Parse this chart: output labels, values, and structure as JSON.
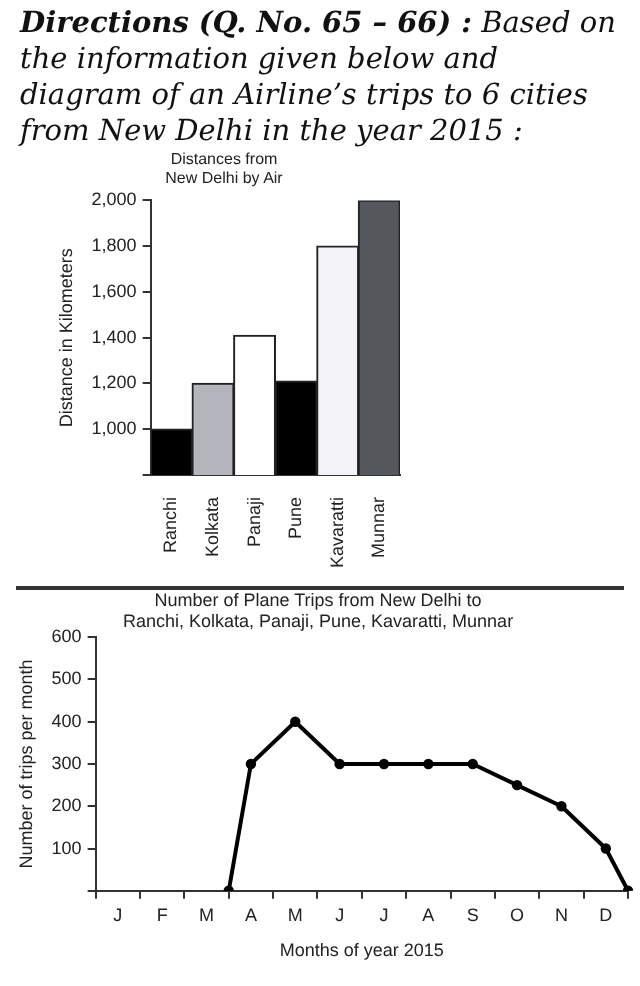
{
  "chart_data": [
    {
      "type": "bar",
      "annotations": [
        "Directions (Q. No. 65 – 66) : Based on the information given below and diagram of an Airline’s trips to 6 cities from New Delhi in the year 2015 :"
      ],
      "title": "Distances from\nNew Delhi by Air",
      "ylabel": "Distance in Kilometers",
      "categories": [
        "Ranchi",
        "Kolkata",
        "Panaji",
        "Pune",
        "Kavaratti",
        "Munnar"
      ],
      "values": [
        1000,
        1200,
        1410,
        1210,
        1800,
        2000
      ],
      "colors": [
        "#000000",
        "#b4b4bc",
        "#ffffff",
        "#000000",
        "#f2f2f8",
        "#54575c"
      ],
      "ylim": [
        800,
        2000
      ],
      "yticks": [
        {
          "value": 800,
          "label": null
        },
        {
          "value": 1000,
          "label": "1,000"
        },
        {
          "value": 1200,
          "label": "1,200"
        },
        {
          "value": 1400,
          "label": "1,400"
        },
        {
          "value": 1600,
          "label": "1,600"
        },
        {
          "value": 1800,
          "label": "1,800"
        },
        {
          "value": 2000,
          "label": "2,000"
        }
      ],
      "grid": false,
      "legend": false
    },
    {
      "type": "line",
      "title": "Number of Plane Trips from New Delhi to\nRanchi, Kolkata, Panaji, Pune, Kavaratti, Munnar",
      "xlabel": "Months of year 2015",
      "ylabel": "Number of trips per month",
      "categories": [
        null,
        "J",
        null,
        "F",
        null,
        "M",
        null,
        "A",
        null,
        "M",
        null,
        "J",
        null,
        "J",
        null,
        "A",
        null,
        "S",
        null,
        "O",
        null,
        "N",
        null,
        "D",
        null
      ],
      "values": [
        null,
        null,
        null,
        null,
        null,
        null,
        0,
        300,
        null,
        400,
        null,
        300,
        null,
        300,
        null,
        300,
        null,
        300,
        null,
        250,
        null,
        200,
        null,
        100,
        0
      ],
      "color": "#000000",
      "marker": "circle",
      "line_style": "solid",
      "ylim": [
        0,
        600
      ],
      "yticks": [
        {
          "value": 0,
          "label": null
        },
        100,
        200,
        300,
        400,
        500,
        600
      ],
      "grid": false,
      "legend": false
    }
  ]
}
